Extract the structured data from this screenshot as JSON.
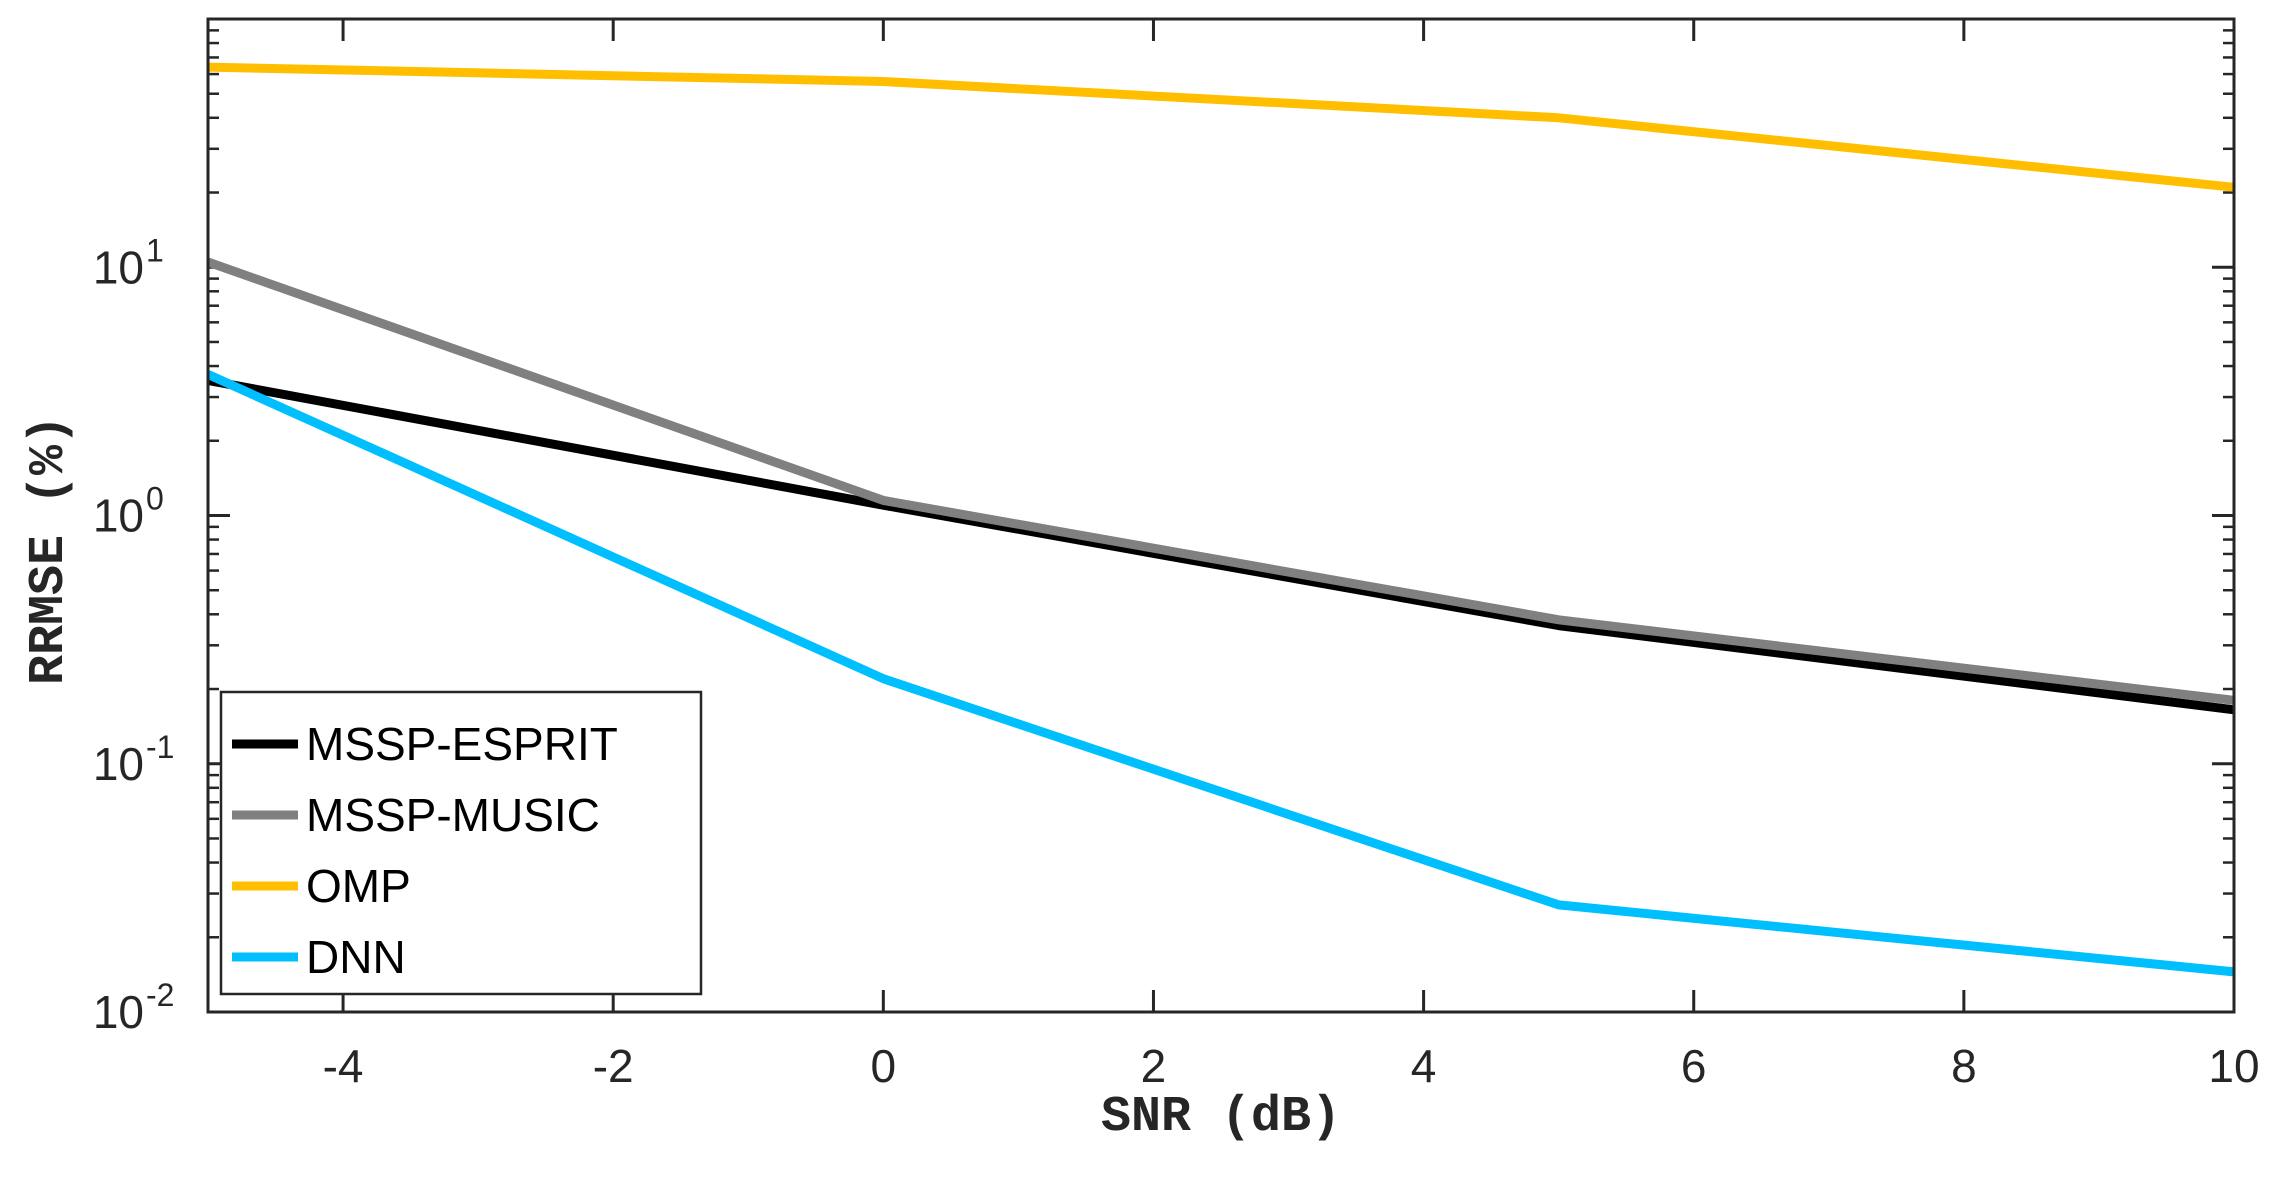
{
  "chart_data": {
    "type": "line",
    "title": "",
    "xlabel": "SNR (dB)",
    "ylabel": "RRMSE (%)",
    "yscale": "log",
    "xlim": [
      -5,
      10
    ],
    "ylim": [
      0.01,
      100
    ],
    "grid": false,
    "legend_position": "bottom-left",
    "x": [
      -5,
      0,
      5,
      10
    ],
    "x_ticks": [
      -4,
      -2,
      0,
      2,
      4,
      6,
      8,
      10
    ],
    "x_tick_labels": [
      "-4",
      "-2",
      "0",
      "2",
      "4",
      "6",
      "8",
      "10"
    ],
    "y_ticks": [
      {
        "value": 10,
        "base": "10",
        "exp": "1"
      },
      {
        "value": 1,
        "base": "10",
        "exp": "0"
      },
      {
        "value": 0.1,
        "base": "10",
        "exp": "-1"
      },
      {
        "value": 0.01,
        "base": "10",
        "exp": "-2"
      }
    ],
    "series": [
      {
        "name": "MSSP-ESPRIT",
        "color": "#000000",
        "values": [
          3.5,
          1.1,
          0.36,
          0.165
        ]
      },
      {
        "name": "MSSP-MUSIC",
        "color": "#808080",
        "values": [
          10.5,
          1.15,
          0.38,
          0.18
        ]
      },
      {
        "name": "OMP",
        "color": "#ffbf00",
        "values": [
          64,
          56,
          40,
          21
        ]
      },
      {
        "name": "DNN",
        "color": "#00bfff",
        "values": [
          3.7,
          0.22,
          0.027,
          0.0145
        ]
      }
    ]
  }
}
